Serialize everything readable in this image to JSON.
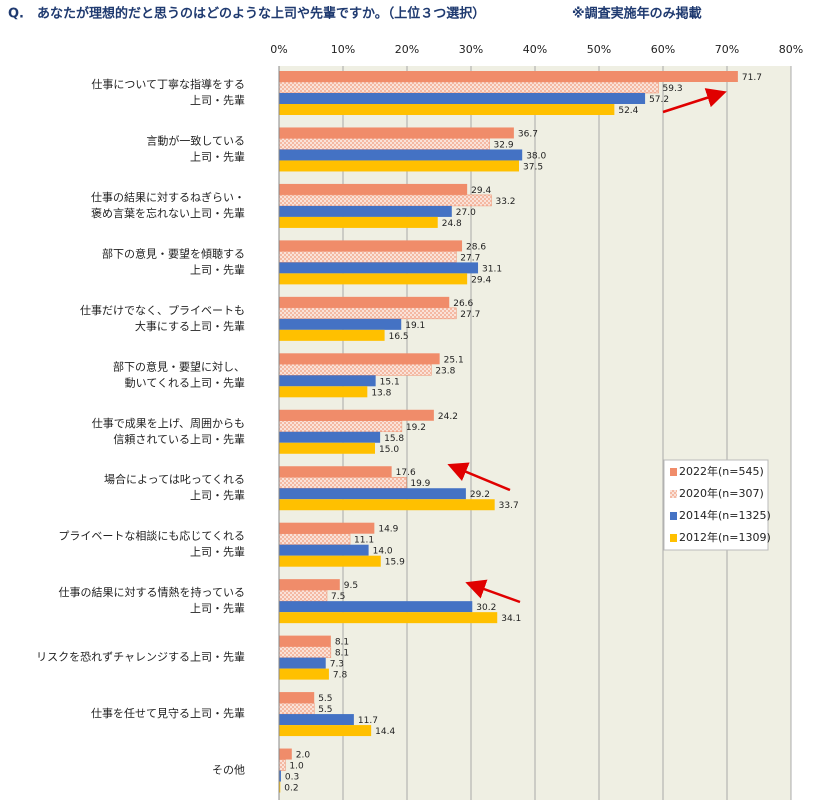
{
  "chart_data": {
    "type": "bar",
    "orientation": "horizontal",
    "title": "Q.　あなたが理想的だと思うのはどのような上司や先輩ですか。（上位３つ選択）",
    "subtitle": "※調査実施年のみ掲載",
    "categories": [
      "仕事について丁寧な指導をする\n上司・先輩",
      "言動が一致している\n上司・先輩",
      "仕事の結果に対するねぎらい・\n褒め言葉を忘れない上司・先輩",
      "部下の意見・要望を傾聴する\n上司・先輩",
      "仕事だけでなく、プライベートも\n大事にする上司・先輩",
      "部下の意見・要望に対し、\n動いてくれる上司・先輩",
      "仕事で成果を上げ、周囲からも\n信頼されている上司・先輩",
      "場合によっては叱ってくれる\n上司・先輩",
      "プライベートな相談にも応じてくれる\n上司・先輩",
      "仕事の結果に対する情熱を持っている\n上司・先輩",
      "リスクを恐れずチャレンジする上司・先輩",
      "仕事を任せて見守る上司・先輩",
      "その他"
    ],
    "series": [
      {
        "name": "2022年(n=545)",
        "color": "#F08C6A",
        "values": [
          71.7,
          36.7,
          29.4,
          28.6,
          26.6,
          25.1,
          24.2,
          17.6,
          14.9,
          9.5,
          8.1,
          5.5,
          2.0
        ],
        "value_labels": [
          "71.7",
          "36.7",
          "29.4",
          "28.6",
          "26.6",
          "25.1",
          "24.2",
          "17.6",
          "14.9",
          "9.5",
          "8.1",
          "5.5",
          "2.0"
        ]
      },
      {
        "name": "2020年(n=307)",
        "color": "#F08C6A",
        "pattern": "dots",
        "values": [
          59.3,
          32.9,
          33.2,
          27.7,
          27.7,
          23.8,
          19.2,
          19.9,
          11.1,
          7.5,
          8.1,
          5.5,
          1.0
        ],
        "value_labels": [
          "59.3",
          "32.9",
          "33.2",
          "27.7",
          "27.7",
          "23.8",
          "19.2",
          "19.9",
          "11.1",
          "7.5",
          "8.1",
          "5.5",
          "1.0"
        ]
      },
      {
        "name": "2014年(n=1325)",
        "color": "#4472C4",
        "values": [
          57.2,
          38.0,
          27.0,
          31.1,
          19.1,
          15.1,
          15.8,
          29.2,
          14.0,
          30.2,
          7.3,
          11.7,
          0.3
        ],
        "value_labels": [
          "57.2",
          "38.0",
          "27.0",
          "31.1",
          "19.1",
          "15.1",
          "15.8",
          "29.2",
          "14.0",
          "30.2",
          "7.3",
          "11.7",
          "0.3"
        ]
      },
      {
        "name": "2012年(n=1309)",
        "color": "#FFC000",
        "values": [
          52.4,
          37.5,
          24.8,
          29.4,
          16.5,
          13.8,
          15.0,
          33.7,
          15.9,
          34.1,
          7.8,
          14.4,
          0.2
        ],
        "value_labels": [
          "52.4",
          "37.5",
          "24.8",
          "29.4",
          "16.5",
          "13.8",
          "15.0",
          "33.7",
          "15.9",
          "34.1",
          "7.8",
          "14.4",
          "0.2"
        ]
      }
    ],
    "xlim": [
      0,
      80
    ],
    "xticks": [
      {
        "value": 0,
        "label": "0%"
      },
      {
        "value": 10,
        "label": "10%"
      },
      {
        "value": 20,
        "label": "20%"
      },
      {
        "value": 30,
        "label": "30%"
      },
      {
        "value": 40,
        "label": "40%"
      },
      {
        "value": 50,
        "label": "50%"
      },
      {
        "value": 60,
        "label": "60%"
      },
      {
        "value": 70,
        "label": "70%"
      },
      {
        "value": 80,
        "label": "80%"
      }
    ],
    "grid": true,
    "legend": "right"
  }
}
